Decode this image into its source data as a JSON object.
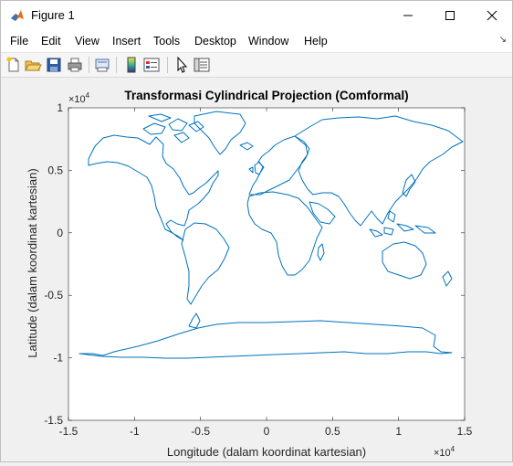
{
  "window": {
    "title": "Figure 1"
  },
  "menu": {
    "items": [
      "File",
      "Edit",
      "View",
      "Insert",
      "Tools",
      "Desktop",
      "Window",
      "Help"
    ]
  },
  "toolbar": {
    "buttons": [
      "new-figure-icon",
      "open-file-icon",
      "save-icon",
      "print-icon",
      "print-preview-icon",
      "insert-colorbar-icon",
      "insert-legend-icon",
      "edit-plot-arrow-icon",
      "property-inspector-icon"
    ]
  },
  "chart_data": {
    "type": "line",
    "title": "Transformasi Cylindrical Projection (Comformal)",
    "xlabel": "Longitude (dalam koordinat kartesian)",
    "ylabel": "Latitude (dalam koordinat kartesian)",
    "xlim": [
      -15000,
      15000
    ],
    "ylim": [
      -15000,
      10000
    ],
    "x_ticks": [
      "-1.5",
      "-1",
      "-0.5",
      "0",
      "0.5",
      "1",
      "1.5"
    ],
    "y_ticks": [
      "-1.5",
      "-1",
      "-0.5",
      "0",
      "0.5",
      "1"
    ],
    "x_multiplier": "×10^4",
    "y_multiplier": "×10^4",
    "series_color": "#0072bd",
    "series": [
      {
        "name": "",
        "description": "world coastlines"
      }
    ]
  }
}
